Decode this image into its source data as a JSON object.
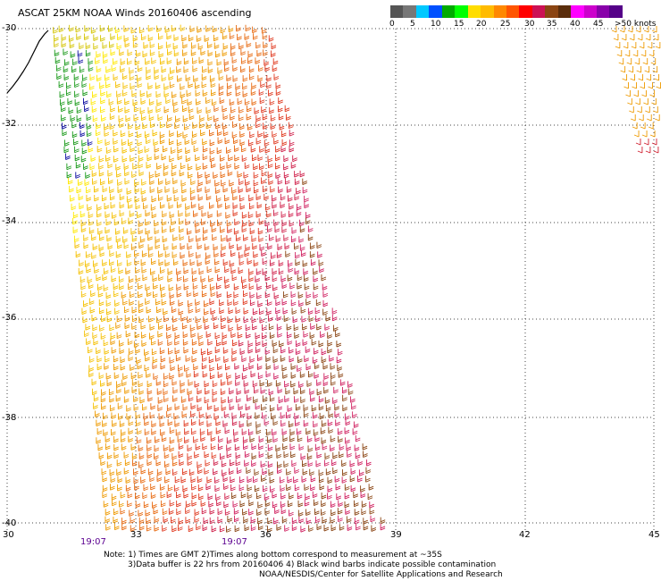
{
  "title": "ASCAT 25KM NOAA Winds 20160406 ascending",
  "legend": {
    "colors": [
      "#555555",
      "#777777",
      "#00c8ff",
      "#0050ff",
      "#00aa00",
      "#00ff00",
      "#ffdd00",
      "#ffbb00",
      "#ff8800",
      "#ff5500",
      "#ff0000",
      "#cc1155",
      "#8b4513",
      "#5a2d0c",
      "#ff00ff",
      "#cc00cc",
      "#8800aa",
      "#550088"
    ],
    "labels": [
      "0",
      "5",
      "10",
      "15",
      "20",
      "25",
      "30",
      "35",
      "40",
      "45",
      ">50 knots"
    ]
  },
  "axes": {
    "lat_labels": [
      "-30",
      "-32",
      "-34",
      "-36",
      "-38",
      "-40"
    ],
    "lon_labels": [
      "30",
      "33",
      "36",
      "39",
      "42",
      "45"
    ],
    "time_labels": [
      "19:07",
      "19:07"
    ]
  },
  "notes": {
    "line1": "Note: 1) Times are GMT 2)Times along bottom correspond to measurement at ~35S",
    "line2": "3)Data buffer is 22 hrs from 20160406 4) Black wind barbs indicate possible contamination",
    "line3": "NOAA/NESDIS/Center for Satellite Applications and Research"
  }
}
